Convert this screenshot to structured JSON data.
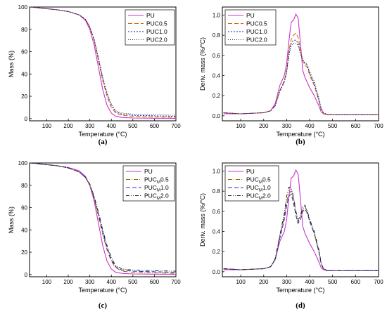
{
  "chart_data": [
    {
      "type": "line",
      "panel_label": "(a)",
      "xlabel": "Temperature (°C)",
      "ylabel": "Mass (%)",
      "xlim": [
        20,
        700
      ],
      "ylim": [
        -2,
        100
      ],
      "xticks": [
        100,
        200,
        300,
        400,
        500,
        600,
        700
      ],
      "yticks": [
        0,
        20,
        40,
        60,
        80,
        100
      ],
      "legend": "top-right",
      "series": [
        {
          "name": "PU",
          "color": "#cc33cc",
          "dash": "solid",
          "x": [
            25,
            100,
            150,
            200,
            250,
            280,
            300,
            320,
            340,
            360,
            380,
            400,
            420,
            450,
            500,
            600,
            700
          ],
          "y": [
            100,
            98.5,
            97.5,
            96,
            93,
            88,
            80,
            66,
            46,
            26,
            12,
            5,
            2,
            1,
            0.5,
            0.3,
            0.2
          ]
        },
        {
          "name": "PUC0.5",
          "color": "#cc6600",
          "dash": "6,3",
          "x": [
            25,
            100,
            150,
            200,
            250,
            280,
            300,
            320,
            340,
            360,
            380,
            400,
            420,
            450,
            500,
            600,
            700
          ],
          "y": [
            100,
            98.5,
            97.5,
            96,
            93,
            89,
            82,
            70,
            52,
            34,
            20,
            10,
            5,
            3,
            2,
            1.5,
            1
          ]
        },
        {
          "name": "PUC1.0",
          "color": "#1a1a99",
          "dash": "2,2",
          "x": [
            25,
            100,
            150,
            200,
            250,
            280,
            300,
            320,
            340,
            360,
            380,
            400,
            420,
            450,
            500,
            600,
            700
          ],
          "y": [
            100,
            98.5,
            97.5,
            96,
            93,
            89,
            82,
            71,
            54,
            36,
            22,
            12,
            6,
            4,
            3,
            2.5,
            2
          ]
        },
        {
          "name": "PUC2.0",
          "color": "#333333",
          "dash": "1,2",
          "x": [
            25,
            100,
            150,
            200,
            250,
            280,
            300,
            320,
            340,
            360,
            380,
            400,
            420,
            450,
            500,
            600,
            700
          ],
          "y": [
            100,
            98.5,
            97.5,
            96,
            93,
            89,
            82,
            71,
            54,
            37,
            23,
            13,
            7,
            5,
            4,
            3.5,
            3
          ]
        }
      ]
    },
    {
      "type": "line",
      "panel_label": "(b)",
      "xlabel": "Temperature (°C)",
      "ylabel": "Deriv. mass (%/°C)",
      "xlim": [
        20,
        700
      ],
      "ylim": [
        -0.05,
        1.08
      ],
      "xticks": [
        100,
        200,
        300,
        400,
        500,
        600,
        700
      ],
      "yticks": [
        0.0,
        0.2,
        0.4,
        0.6,
        0.8,
        1.0
      ],
      "legend": "top-left",
      "series": [
        {
          "name": "PU",
          "color": "#cc33cc",
          "dash": "solid",
          "x": [
            25,
            100,
            200,
            230,
            250,
            270,
            290,
            300,
            310,
            320,
            330,
            340,
            350,
            360,
            370,
            380,
            390,
            400,
            420,
            440,
            450,
            460,
            480,
            500,
            600,
            700
          ],
          "y": [
            0.02,
            0.02,
            0.03,
            0.05,
            0.12,
            0.3,
            0.4,
            0.52,
            0.75,
            0.93,
            0.95,
            1.01,
            0.97,
            0.72,
            0.45,
            0.38,
            0.33,
            0.28,
            0.2,
            0.1,
            0.04,
            0.02,
            0.01,
            0.01,
            0.01,
            0.01
          ]
        },
        {
          "name": "PUC0.5",
          "color": "#cc6600",
          "dash": "6,3",
          "x": [
            25,
            100,
            200,
            230,
            250,
            270,
            290,
            300,
            310,
            320,
            330,
            340,
            350,
            360,
            370,
            380,
            390,
            400,
            420,
            440,
            450,
            460,
            480,
            500,
            600,
            700
          ],
          "y": [
            0.03,
            0.02,
            0.03,
            0.05,
            0.1,
            0.25,
            0.35,
            0.45,
            0.65,
            0.76,
            0.8,
            0.82,
            0.78,
            0.65,
            0.55,
            0.5,
            0.48,
            0.4,
            0.3,
            0.15,
            0.06,
            0.02,
            0.01,
            0.01,
            0.01,
            0.01
          ]
        },
        {
          "name": "PUC1.0",
          "color": "#1a1a99",
          "dash": "2,2",
          "x": [
            25,
            100,
            200,
            230,
            250,
            270,
            290,
            300,
            310,
            320,
            330,
            340,
            350,
            360,
            370,
            380,
            390,
            400,
            420,
            440,
            450,
            460,
            480,
            500,
            600,
            700
          ],
          "y": [
            0.03,
            0.02,
            0.03,
            0.05,
            0.1,
            0.24,
            0.34,
            0.44,
            0.62,
            0.72,
            0.75,
            0.75,
            0.72,
            0.62,
            0.55,
            0.52,
            0.5,
            0.42,
            0.32,
            0.16,
            0.07,
            0.03,
            0.01,
            0.01,
            0.01,
            0.01
          ]
        },
        {
          "name": "PUC2.0",
          "color": "#333333",
          "dash": "1,2",
          "x": [
            25,
            100,
            200,
            230,
            250,
            270,
            290,
            300,
            310,
            320,
            330,
            340,
            350,
            360,
            370,
            380,
            390,
            400,
            420,
            440,
            450,
            460,
            480,
            500,
            600,
            700
          ],
          "y": [
            0.03,
            0.02,
            0.03,
            0.05,
            0.1,
            0.25,
            0.33,
            0.43,
            0.6,
            0.7,
            0.72,
            0.72,
            0.7,
            0.62,
            0.56,
            0.53,
            0.51,
            0.44,
            0.34,
            0.18,
            0.08,
            0.03,
            0.01,
            0.01,
            0.01,
            0.01
          ]
        }
      ]
    },
    {
      "type": "line",
      "panel_label": "(c)",
      "xlabel": "Temperature (°C)",
      "ylabel": "Mass (%)",
      "xlim": [
        20,
        700
      ],
      "ylim": [
        -2,
        100
      ],
      "xticks": [
        100,
        200,
        300,
        400,
        500,
        600,
        700
      ],
      "yticks": [
        0,
        20,
        40,
        60,
        80,
        100
      ],
      "legend": "top-right",
      "series": [
        {
          "name": "PU",
          "color": "#cc33cc",
          "dash": "solid",
          "x": [
            25,
            100,
            150,
            200,
            250,
            280,
            300,
            320,
            340,
            360,
            380,
            400,
            420,
            450,
            500,
            600,
            700
          ],
          "y": [
            100,
            98.5,
            97.5,
            96,
            93,
            88,
            80,
            66,
            46,
            26,
            12,
            5,
            2,
            1,
            0.5,
            0.3,
            0.2
          ]
        },
        {
          "name": "PUCM0.5",
          "color": "#996600",
          "dash": "6,2,1,2",
          "x": [
            25,
            100,
            150,
            200,
            250,
            280,
            300,
            320,
            340,
            360,
            380,
            400,
            420,
            450,
            500,
            600,
            700
          ],
          "y": [
            100,
            98.5,
            97.5,
            95.5,
            92,
            87,
            80,
            68,
            52,
            36,
            22,
            12,
            6,
            3,
            2,
            1.5,
            1
          ]
        },
        {
          "name": "PUCM1.0",
          "color": "#2233aa",
          "dash": "6,3",
          "x": [
            25,
            100,
            150,
            200,
            250,
            280,
            300,
            320,
            340,
            360,
            380,
            400,
            420,
            450,
            500,
            600,
            700
          ],
          "y": [
            100,
            98.5,
            97.5,
            95.5,
            92,
            87,
            81,
            69,
            54,
            38,
            24,
            13,
            7,
            4,
            3,
            2.5,
            2
          ]
        },
        {
          "name": "PUCM2.0",
          "color": "#222222",
          "dash": "5,2,1,2,1,2",
          "x": [
            25,
            100,
            150,
            200,
            250,
            280,
            300,
            320,
            340,
            360,
            380,
            400,
            420,
            450,
            500,
            600,
            700
          ],
          "y": [
            100,
            98.5,
            97.5,
            95.5,
            92,
            87,
            81,
            70,
            56,
            40,
            26,
            15,
            8,
            5,
            4,
            3.5,
            3
          ]
        }
      ]
    },
    {
      "type": "line",
      "panel_label": "(d)",
      "xlabel": "Temperature (°C)",
      "ylabel": "Deriv. mass (%/°C)",
      "xlim": [
        20,
        700
      ],
      "ylim": [
        -0.05,
        1.08
      ],
      "xticks": [
        100,
        200,
        300,
        400,
        500,
        600,
        700
      ],
      "yticks": [
        0.0,
        0.2,
        0.4,
        0.6,
        0.8,
        1.0
      ],
      "legend": "top-left",
      "series": [
        {
          "name": "PU",
          "color": "#cc33cc",
          "dash": "solid",
          "x": [
            25,
            100,
            200,
            230,
            250,
            270,
            290,
            300,
            310,
            320,
            330,
            340,
            350,
            360,
            370,
            380,
            390,
            400,
            420,
            440,
            450,
            460,
            480,
            500,
            600,
            700
          ],
          "y": [
            0.02,
            0.02,
            0.03,
            0.05,
            0.12,
            0.3,
            0.4,
            0.52,
            0.75,
            0.93,
            0.95,
            1.01,
            0.97,
            0.72,
            0.45,
            0.38,
            0.33,
            0.28,
            0.2,
            0.1,
            0.04,
            0.02,
            0.01,
            0.01,
            0.01,
            0.01
          ]
        },
        {
          "name": "PUCM0.5",
          "color": "#996600",
          "dash": "6,2,1,2",
          "x": [
            25,
            100,
            200,
            230,
            250,
            270,
            290,
            300,
            310,
            320,
            330,
            340,
            350,
            360,
            370,
            380,
            390,
            400,
            420,
            440,
            450,
            460,
            480,
            500,
            600,
            700
          ],
          "y": [
            0.03,
            0.02,
            0.03,
            0.05,
            0.12,
            0.35,
            0.55,
            0.7,
            0.78,
            0.8,
            0.72,
            0.6,
            0.52,
            0.55,
            0.62,
            0.64,
            0.6,
            0.5,
            0.38,
            0.2,
            0.08,
            0.03,
            0.01,
            0.01,
            0.01,
            0.01
          ]
        },
        {
          "name": "PUCM1.0",
          "color": "#2233aa",
          "dash": "6,3",
          "x": [
            25,
            100,
            200,
            230,
            250,
            270,
            290,
            300,
            310,
            320,
            330,
            340,
            350,
            360,
            370,
            380,
            390,
            400,
            420,
            440,
            450,
            460,
            480,
            500,
            600,
            700
          ],
          "y": [
            0.03,
            0.02,
            0.03,
            0.05,
            0.12,
            0.33,
            0.52,
            0.66,
            0.75,
            0.77,
            0.68,
            0.56,
            0.48,
            0.52,
            0.6,
            0.62,
            0.58,
            0.5,
            0.38,
            0.2,
            0.08,
            0.03,
            0.01,
            0.01,
            0.01,
            0.01
          ]
        },
        {
          "name": "PUCM2.0",
          "color": "#222222",
          "dash": "5,2,1,2,1,2",
          "x": [
            25,
            100,
            200,
            230,
            250,
            270,
            290,
            300,
            310,
            320,
            330,
            340,
            350,
            360,
            370,
            380,
            390,
            400,
            420,
            440,
            450,
            460,
            480,
            500,
            600,
            700
          ],
          "y": [
            0.03,
            0.02,
            0.03,
            0.05,
            0.13,
            0.36,
            0.58,
            0.75,
            0.84,
            0.83,
            0.74,
            0.6,
            0.5,
            0.56,
            0.64,
            0.66,
            0.6,
            0.52,
            0.4,
            0.22,
            0.09,
            0.03,
            0.01,
            0.01,
            0.01,
            0.01
          ]
        }
      ]
    }
  ]
}
